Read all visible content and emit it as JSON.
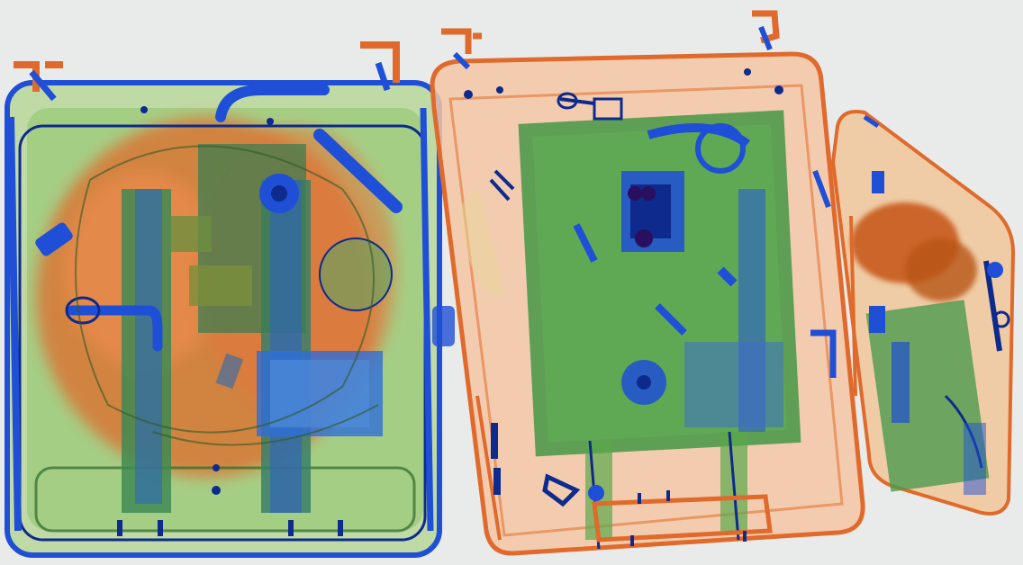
{
  "image": {
    "kind": "x-ray baggage scan",
    "background_color": "#e9ebea",
    "palette": {
      "organic": "#e0692a",
      "organic_light": "#f2b48c",
      "mixed": "#5aa84a",
      "mixed_light": "#a9d18b",
      "metal": "#1f4fd6",
      "metal_dark": "#0d2a8c",
      "dense": "#2a0f5e"
    }
  }
}
